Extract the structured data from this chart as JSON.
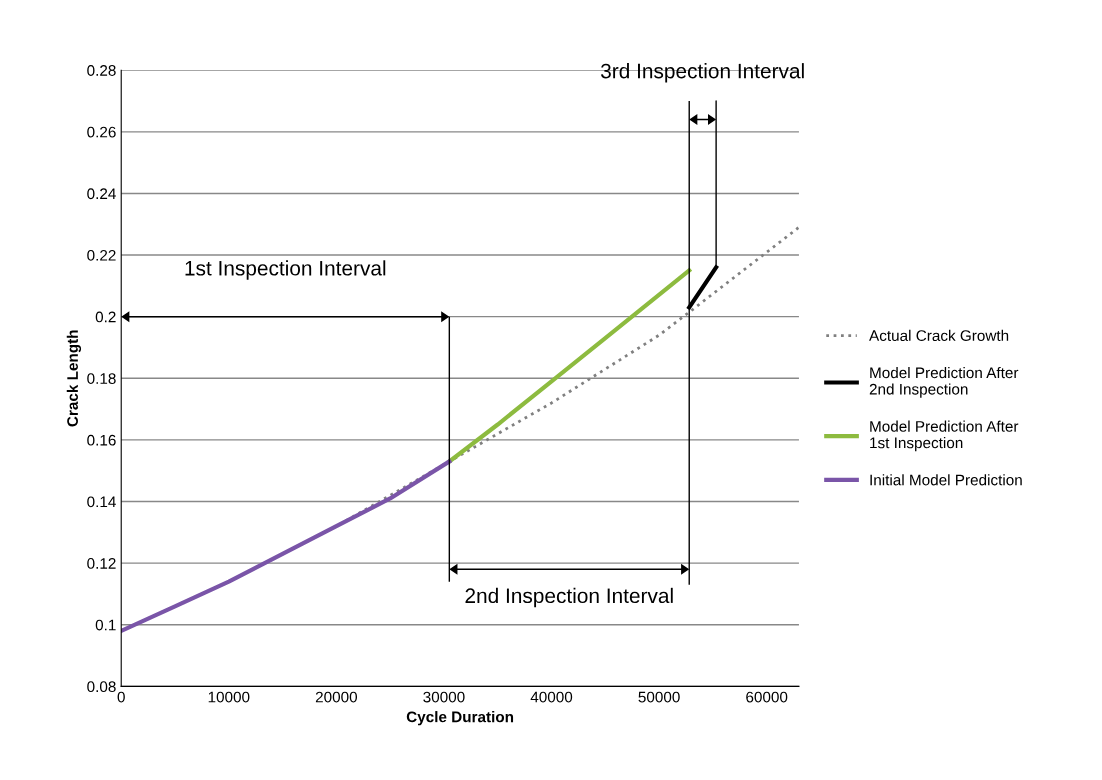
{
  "chart_data": {
    "type": "line",
    "xlabel": "Cycle Duration",
    "ylabel": "Crack Length",
    "xlim": [
      0,
      63000
    ],
    "xticks": [
      0,
      10000,
      20000,
      30000,
      40000,
      50000,
      60000
    ],
    "ylim": [
      0.08,
      0.28
    ],
    "yticks": [
      0.08,
      0.1,
      0.12,
      0.14,
      0.16,
      0.18,
      0.2,
      0.22,
      0.24,
      0.26,
      0.28
    ],
    "grid": "y",
    "legend": "right",
    "series": [
      {
        "name": "Actual Crack Growth",
        "color": "#808080",
        "line_style": "dotted",
        "x": [
          0,
          10000,
          20000,
          30000,
          40000,
          50000,
          53000,
          63000
        ],
        "values": [
          0.098,
          0.114,
          0.132,
          0.152,
          0.172,
          0.194,
          0.202,
          0.229
        ]
      },
      {
        "name": "Model Prediction After\n2nd Inspection",
        "color": "#000000",
        "line_style": "solid",
        "x": [
          52800,
          55300
        ],
        "values": [
          0.203,
          0.216
        ]
      },
      {
        "name": "Model Prediction After\n1st Inspection",
        "color": "#8dbb3f",
        "line_style": "solid",
        "x": [
          30500,
          35000,
          40000,
          45000,
          52800
        ],
        "values": [
          0.153,
          0.165,
          0.179,
          0.193,
          0.215
        ]
      },
      {
        "name": "Initial Model Prediction",
        "color": "#7a55a8",
        "line_style": "solid",
        "x": [
          0,
          5000,
          10000,
          15000,
          20000,
          25000,
          30500
        ],
        "values": [
          0.098,
          0.106,
          0.114,
          0.123,
          0.132,
          0.141,
          0.153
        ]
      }
    ],
    "annotations": [
      "1st Inspection Interval",
      "2nd Inspection Interval",
      {
        "text": "3rd Inspection Interval",
        "x": 55300,
        "y": 0.216
      }
    ]
  }
}
